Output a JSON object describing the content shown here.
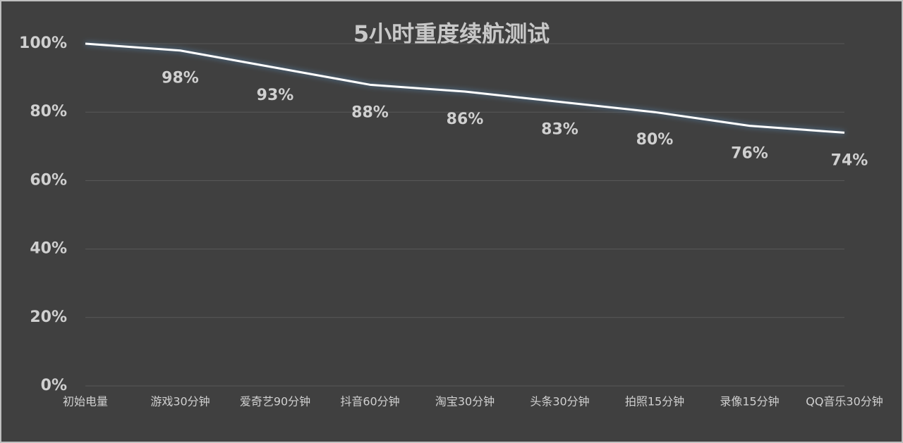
{
  "chart_data": {
    "type": "line",
    "title": "5小时重度续航测试",
    "categories": [
      "初始电量",
      "游戏30分钟",
      "爱奇艺90分钟",
      "抖音60分钟",
      "淘宝30分钟",
      "头条30分钟",
      "拍照15分钟",
      "录像15分钟",
      "QQ音乐30分钟"
    ],
    "values": [
      100,
      98,
      93,
      88,
      86,
      83,
      80,
      76,
      74
    ],
    "value_labels": [
      null,
      "98%",
      "93%",
      "88%",
      "86%",
      "83%",
      "80%",
      "76%",
      "74%"
    ],
    "color": "#ffffff",
    "ylim": [
      0,
      100
    ],
    "yticks": [
      {
        "value": 0,
        "label": "0%"
      },
      {
        "value": 20,
        "label": "20%"
      },
      {
        "value": 40,
        "label": "40%"
      },
      {
        "value": 60,
        "label": "60%"
      },
      {
        "value": 80,
        "label": "80%"
      },
      {
        "value": 100,
        "label": "100%"
      }
    ],
    "grid": true
  }
}
